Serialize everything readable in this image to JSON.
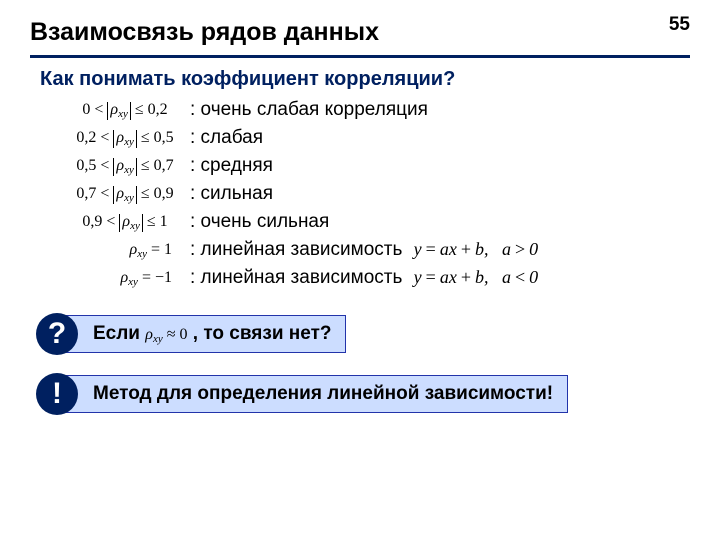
{
  "page_number": "55",
  "title": "Взаимосвязь рядов данных",
  "subtitle": "Как понимать коэффициент корреляции?",
  "ranges": [
    {
      "low": "0",
      "high": "0,2",
      "desc": ": очень слабая корреляция"
    },
    {
      "low": "0,2",
      "high": "0,5",
      "desc": ": слабая"
    },
    {
      "low": "0,5",
      "high": "0,7",
      "desc": ": средняя"
    },
    {
      "low": "0,7",
      "high": "0,9",
      "desc": ": сильная"
    },
    {
      "low": "0,9",
      "high": "1",
      "desc": ": очень сильная"
    }
  ],
  "exact": [
    {
      "val": "1",
      "desc": ": линейная зависимость",
      "eq": "y = ax + b,   a > 0"
    },
    {
      "val": "−1",
      "desc": ": линейная зависимость",
      "eq": "y = ax + b,   a < 0"
    }
  ],
  "callout1": {
    "symbol": "?",
    "before": "Если ",
    "formula": "ρ_xy ≈ 0",
    "after": " , то связи нет?"
  },
  "callout2": {
    "symbol": "!",
    "text": "Метод для определения линейной зависимости!"
  },
  "colors": {
    "accent": "#002060",
    "callout_bg": "#ccddff",
    "callout_border": "#2233aa"
  }
}
